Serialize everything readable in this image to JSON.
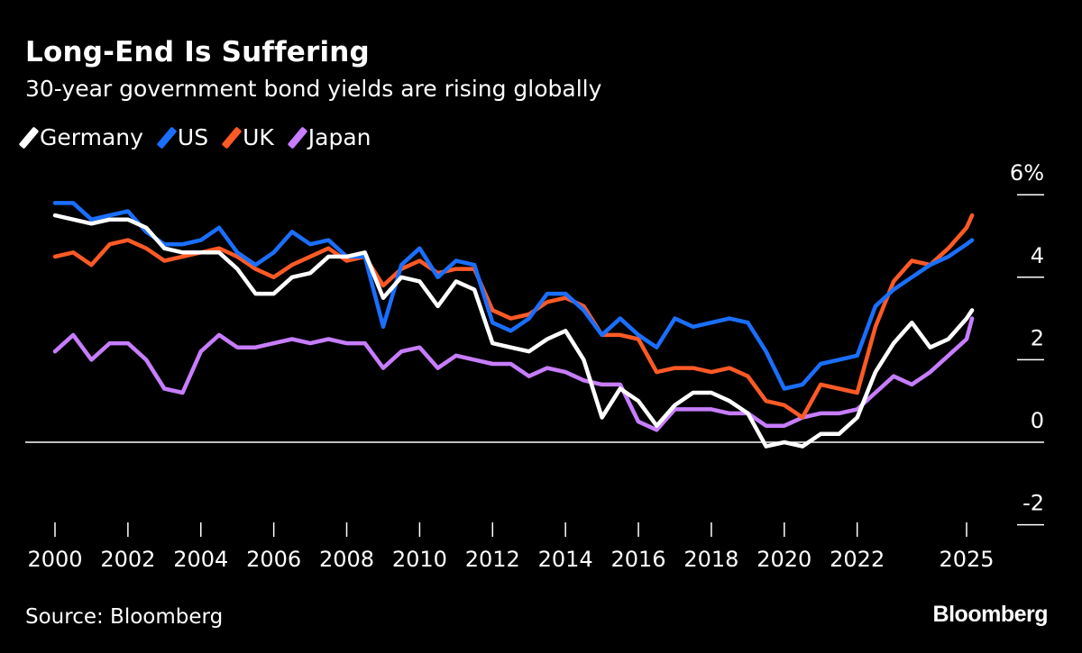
{
  "title": "Long-End Is Suffering",
  "subtitle": "30-year government bond yields are rising globally",
  "source": "Source: Bloomberg",
  "logo": "Bloomberg",
  "chart_data": {
    "type": "line",
    "title": "Long-End Is Suffering",
    "subtitle": "30-year government bond yields are rising globally",
    "legend_position": "top-left",
    "grid": false,
    "xlim": [
      2000,
      2025.2
    ],
    "ylim": [
      -2,
      6
    ],
    "y_unit": "%",
    "y_ticks": [
      {
        "value": 6,
        "label": "6%"
      },
      {
        "value": 4,
        "label": "4"
      },
      {
        "value": 2,
        "label": "2"
      },
      {
        "value": 0,
        "label": "0"
      },
      {
        "value": -2,
        "label": "-2"
      }
    ],
    "x_ticks": [
      {
        "value": 2000,
        "label": "2000"
      },
      {
        "value": 2002,
        "label": "2002"
      },
      {
        "value": 2004,
        "label": "2004"
      },
      {
        "value": 2006,
        "label": "2006"
      },
      {
        "value": 2008,
        "label": "2008"
      },
      {
        "value": 2010,
        "label": "2010"
      },
      {
        "value": 2012,
        "label": "2012"
      },
      {
        "value": 2014,
        "label": "2014"
      },
      {
        "value": 2016,
        "label": "2016"
      },
      {
        "value": 2018,
        "label": "2018"
      },
      {
        "value": 2020,
        "label": "2020"
      },
      {
        "value": 2022,
        "label": "2022"
      },
      {
        "value": 2025,
        "label": "2025"
      }
    ],
    "x": [
      2000,
      2000.5,
      2001,
      2001.5,
      2002,
      2002.5,
      2003,
      2003.5,
      2004,
      2004.5,
      2005,
      2005.5,
      2006,
      2006.5,
      2007,
      2007.5,
      2008,
      2008.5,
      2009,
      2009.5,
      2010,
      2010.5,
      2011,
      2011.5,
      2012,
      2012.5,
      2013,
      2013.5,
      2014,
      2014.5,
      2015,
      2015.5,
      2016,
      2016.5,
      2017,
      2017.5,
      2018,
      2018.5,
      2019,
      2019.5,
      2020,
      2020.5,
      2021,
      2021.5,
      2022,
      2022.5,
      2023,
      2023.5,
      2024,
      2024.5,
      2025,
      2025.15
    ],
    "series": [
      {
        "name": "Japan",
        "color": "#c77dff",
        "values": [
          2.2,
          2.6,
          2.0,
          2.4,
          2.4,
          2.0,
          1.3,
          1.2,
          2.2,
          2.6,
          2.3,
          2.3,
          2.4,
          2.5,
          2.4,
          2.5,
          2.4,
          2.4,
          1.8,
          2.2,
          2.3,
          1.8,
          2.1,
          2.0,
          1.9,
          1.9,
          1.6,
          1.8,
          1.7,
          1.5,
          1.4,
          1.4,
          0.5,
          0.3,
          0.8,
          0.8,
          0.8,
          0.7,
          0.7,
          0.4,
          0.4,
          0.6,
          0.7,
          0.7,
          0.8,
          1.2,
          1.6,
          1.4,
          1.7,
          2.1,
          2.5,
          3.0
        ]
      },
      {
        "name": "UK",
        "color": "#ff5a26",
        "values": [
          4.5,
          4.6,
          4.3,
          4.8,
          4.9,
          4.7,
          4.4,
          4.5,
          4.6,
          4.7,
          4.5,
          4.2,
          4.0,
          4.3,
          4.5,
          4.7,
          4.4,
          4.5,
          3.8,
          4.2,
          4.4,
          4.1,
          4.2,
          4.2,
          3.2,
          3.0,
          3.1,
          3.4,
          3.5,
          3.3,
          2.6,
          2.6,
          2.5,
          1.7,
          1.8,
          1.8,
          1.7,
          1.8,
          1.6,
          1.0,
          0.9,
          0.6,
          1.4,
          1.3,
          1.2,
          2.8,
          3.9,
          4.4,
          4.3,
          4.7,
          5.2,
          5.5
        ]
      },
      {
        "name": "US",
        "color": "#1a6fff",
        "values": [
          5.8,
          5.8,
          5.4,
          5.5,
          5.6,
          5.1,
          4.8,
          4.8,
          4.9,
          5.2,
          4.6,
          4.3,
          4.6,
          5.1,
          4.8,
          4.9,
          4.5,
          4.5,
          2.8,
          4.3,
          4.7,
          4.0,
          4.4,
          4.3,
          2.9,
          2.7,
          3.0,
          3.6,
          3.6,
          3.2,
          2.6,
          3.0,
          2.6,
          2.3,
          3.0,
          2.8,
          2.9,
          3.0,
          2.9,
          2.2,
          1.3,
          1.4,
          1.9,
          2.0,
          2.1,
          3.3,
          3.7,
          4.0,
          4.3,
          4.5,
          4.8,
          4.9
        ]
      },
      {
        "name": "Germany",
        "color": "#ffffff",
        "values": [
          5.5,
          5.4,
          5.3,
          5.4,
          5.4,
          5.2,
          4.7,
          4.6,
          4.6,
          4.6,
          4.2,
          3.6,
          3.6,
          4.0,
          4.1,
          4.5,
          4.5,
          4.6,
          3.5,
          4.0,
          3.9,
          3.3,
          3.9,
          3.7,
          2.4,
          2.3,
          2.2,
          2.5,
          2.7,
          2.0,
          0.6,
          1.3,
          1.0,
          0.4,
          0.9,
          1.2,
          1.2,
          1.0,
          0.7,
          -0.1,
          0.0,
          -0.1,
          0.2,
          0.2,
          0.6,
          1.7,
          2.4,
          2.9,
          2.3,
          2.5,
          3.0,
          3.2
        ]
      }
    ]
  }
}
